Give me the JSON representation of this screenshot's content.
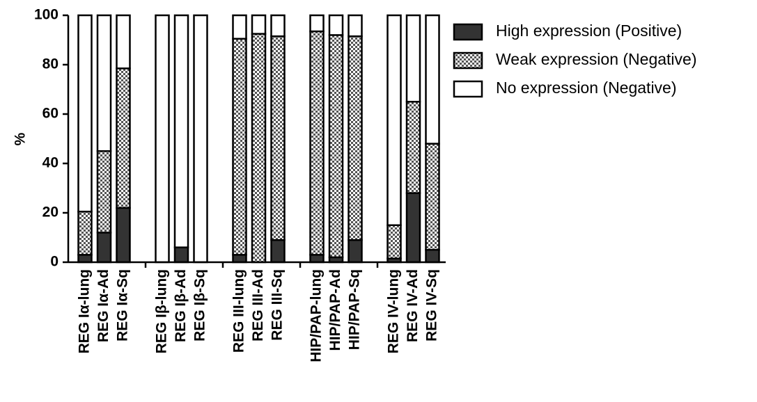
{
  "chart_data": {
    "type": "stacked_bar",
    "y_label": "%",
    "categories": [
      "REG Iα-lung",
      "REG Iα-Ad",
      "REG Iα-Sq",
      "REG Iβ-lung",
      "REG Iβ-Ad",
      "REG Iβ-Sq",
      "REG III-lung",
      "REG III-Ad",
      "REG III-Sq",
      "HIP/PAP-lung",
      "HIP/PAP-Ad",
      "HIP/PAP-Sq",
      "REG IV-lung",
      "REG IV-Ad",
      "REG IV-Sq"
    ],
    "series": [
      {
        "name": "High expression (Positive)",
        "color": "#333333",
        "values": [
          3,
          12,
          22,
          0,
          6,
          0,
          3,
          0,
          9,
          3,
          2,
          9,
          1.5,
          28,
          5
        ]
      },
      {
        "name": "Weak expression (Negative)",
        "color": "#555555",
        "pattern": "checker",
        "values": [
          17.5,
          33,
          56.5,
          0,
          0,
          0,
          87.5,
          92.5,
          82.5,
          90.5,
          90,
          82.5,
          13.5,
          37,
          43
        ]
      },
      {
        "name": "No expression (Negative)",
        "color": "#ffffff",
        "values": [
          79.5,
          55,
          21.5,
          100,
          94,
          100,
          9.5,
          7.5,
          8.5,
          6.5,
          8,
          8.5,
          85,
          35,
          52
        ]
      }
    ],
    "ylim": [
      0,
      100
    ],
    "yticks": [
      0,
      20,
      40,
      60,
      80,
      100
    ],
    "grid": false,
    "legend": "top-right"
  }
}
